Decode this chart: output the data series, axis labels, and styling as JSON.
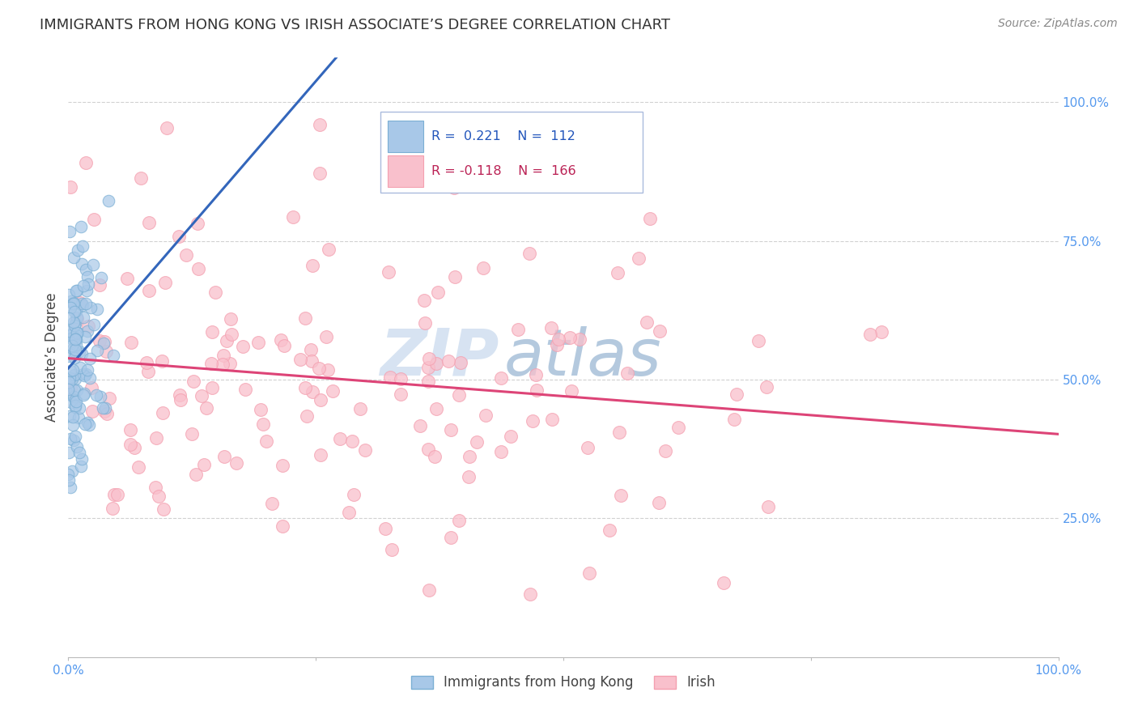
{
  "title": "IMMIGRANTS FROM HONG KONG VS IRISH ASSOCIATE’S DEGREE CORRELATION CHART",
  "source": "Source: ZipAtlas.com",
  "ylabel": "Associate’s Degree",
  "ylabel_right_ticks": [
    "100.0%",
    "75.0%",
    "50.0%",
    "25.0%"
  ],
  "ylabel_right_vals": [
    1.0,
    0.75,
    0.5,
    0.25
  ],
  "legend_labels": [
    "Immigrants from Hong Kong",
    "Irish"
  ],
  "r_hk": 0.221,
  "n_hk": 112,
  "r_irish": -0.118,
  "n_irish": 166,
  "blue_color": "#7BAFD4",
  "pink_color": "#F4A0B0",
  "blue_fill": "#A8C8E8",
  "pink_fill": "#F9C0CC",
  "blue_line_color": "#3366BB",
  "pink_line_color": "#DD4477",
  "background_color": "#FFFFFF",
  "grid_color": "#CCCCCC",
  "title_color": "#333333",
  "axis_label_color": "#444444",
  "tick_color": "#5599EE",
  "watermark_zip_color": "#C8D8EC",
  "watermark_atlas_color": "#88AACC",
  "legend_box_color": "#E8EEF8",
  "legend_border_color": "#AABBDD"
}
